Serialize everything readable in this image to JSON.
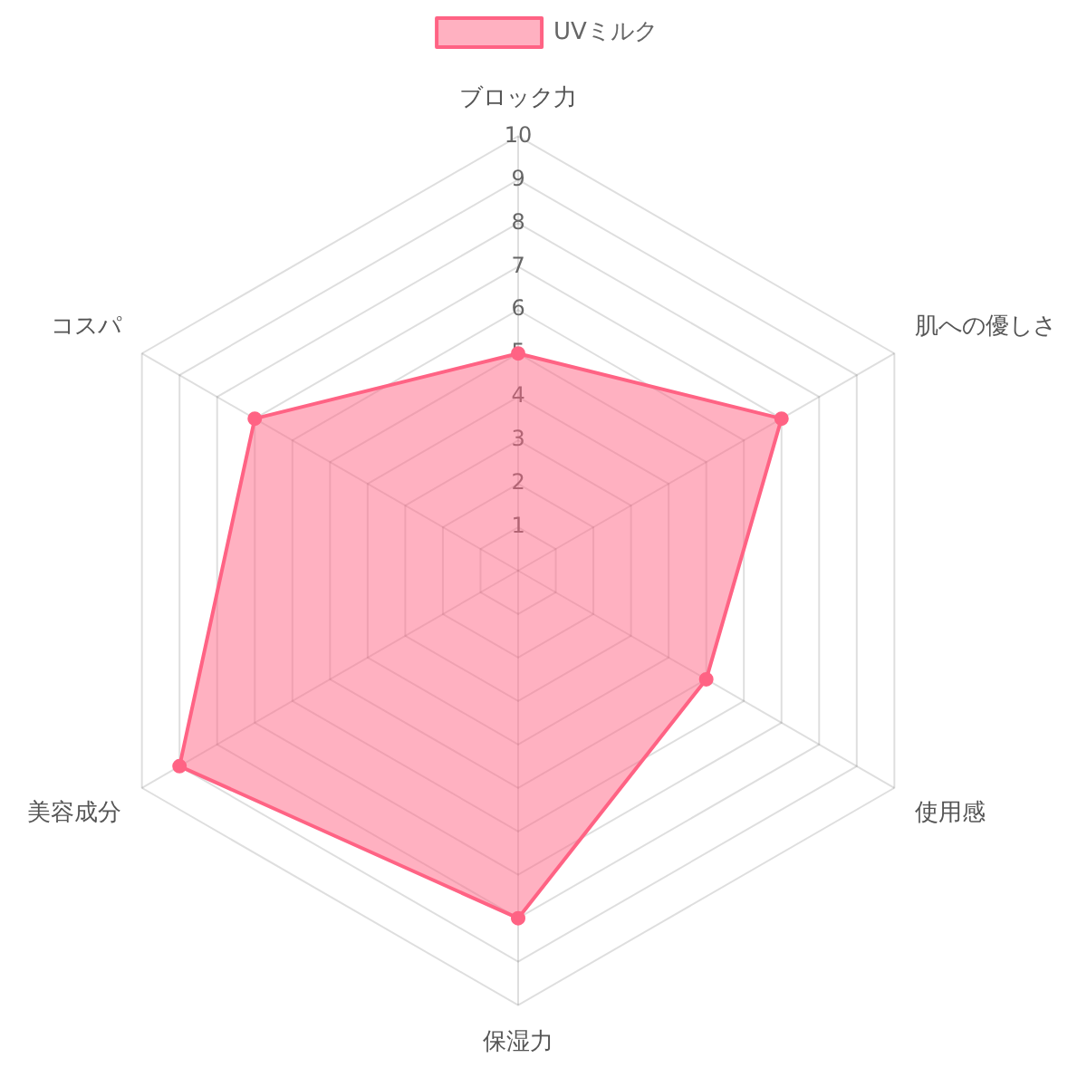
{
  "chart_data": {
    "type": "radar",
    "categories": [
      "ブロック力",
      "肌への優しさ",
      "使用感",
      "保湿力",
      "美容成分",
      "コスパ"
    ],
    "series": [
      {
        "name": "UVミルク",
        "color": "#ff6384",
        "values": [
          5,
          7,
          5,
          8,
          9,
          7
        ]
      }
    ],
    "ylim": [
      0,
      10
    ],
    "yticks": [
      1,
      2,
      3,
      4,
      5,
      6,
      7,
      8,
      9,
      10
    ],
    "grid": true,
    "legend": "top",
    "marker": "circle"
  }
}
